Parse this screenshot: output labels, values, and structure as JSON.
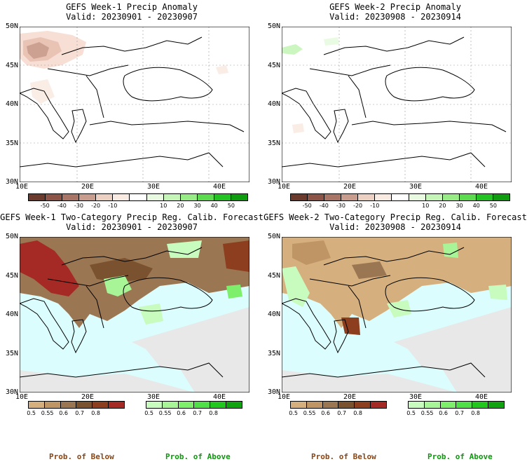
{
  "panels": [
    {
      "title": "GEFS Week-1 Precip Anomaly",
      "valid": "Valid: 20230901 - 20230907"
    },
    {
      "title": "GEFS Week-2 Precip Anomaly",
      "valid": "Valid: 20230908 - 20230914"
    },
    {
      "title": "GEFS Week-1 Two-Category Precip Reg. Calib. Forecast",
      "valid": "Valid: 20230901 - 20230907"
    },
    {
      "title": "GEFS Week-2 Two-Category Precip Reg. Calib. Forecast",
      "valid": "Valid: 20230908 - 20230914"
    }
  ],
  "lat_labels": [
    "50N",
    "45N",
    "40N",
    "35N",
    "30N"
  ],
  "lon_labels": [
    "10E",
    "20E",
    "30E",
    "40E"
  ],
  "anomaly_colorbar": {
    "labels": [
      "-50",
      "-40",
      "-30",
      "-20",
      "-10",
      "10",
      "20",
      "30",
      "40",
      "50"
    ],
    "colors": [
      "#6b3a2c",
      "#8b5446",
      "#a87567",
      "#c99d8e",
      "#ecd0c2",
      "#faebe2",
      "#ffffff",
      "#e8fbe0",
      "#c6f5b8",
      "#97ec85",
      "#5bdb4d",
      "#22c322",
      "#0f9d0f"
    ]
  },
  "prob_colorbars": {
    "below": {
      "labels": [
        "0.5",
        "0.55",
        "0.6",
        "0.7",
        "0.8"
      ],
      "colors": [
        "#d5b07e",
        "#bf9566",
        "#9b7653",
        "#7a5230",
        "#8c3e1e",
        "#a52a26"
      ]
    },
    "above": {
      "labels": [
        "0.5",
        "0.55",
        "0.6",
        "0.7",
        "0.8"
      ],
      "colors": [
        "#c8fbbe",
        "#a7f597",
        "#7def6a",
        "#4ee046",
        "#22c71e",
        "#0fa40f"
      ]
    }
  },
  "legend_labels": {
    "below": "Prob. of Below",
    "above": "Prob. of Above"
  },
  "colors": {
    "below_text": "#8b4513",
    "above_text": "#0a9a0a",
    "sea": "#dcfdfd",
    "no_data": "#e8e8e8",
    "land": "#ffffff"
  }
}
